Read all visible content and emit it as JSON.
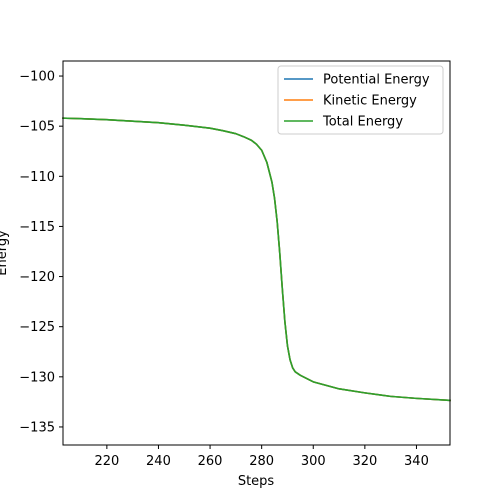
{
  "chart_data": {
    "type": "line",
    "title": "",
    "xlabel": "Steps",
    "ylabel": "Energy",
    "xlim": [
      203,
      353
    ],
    "ylim": [
      -136.8,
      -98.5
    ],
    "xticks": [
      220,
      240,
      260,
      280,
      300,
      320,
      340
    ],
    "yticks": [
      -100,
      -105,
      -110,
      -115,
      -120,
      -125,
      -130,
      -135
    ],
    "xtick_labels": [
      "220",
      "240",
      "260",
      "280",
      "300",
      "320",
      "340"
    ],
    "ytick_labels": [
      "−100",
      "−105",
      "−110",
      "−115",
      "−120",
      "−125",
      "−130",
      "−135"
    ],
    "grid": false,
    "legend_position": "top-right",
    "x": [
      203,
      210,
      220,
      230,
      240,
      250,
      260,
      265,
      270,
      273,
      276,
      278,
      280,
      282,
      284,
      285,
      286,
      287,
      288,
      289,
      290,
      291,
      292,
      293,
      295,
      300,
      310,
      320,
      330,
      340,
      353
    ],
    "series": [
      {
        "name": "Potential Energy",
        "color": "#1f77b4",
        "values": [
          -104.2,
          -104.25,
          -104.35,
          -104.5,
          -104.65,
          -104.9,
          -105.2,
          -105.45,
          -105.75,
          -106.05,
          -106.4,
          -106.8,
          -107.4,
          -108.6,
          -110.6,
          -112.2,
          -114.5,
          -117.6,
          -121.2,
          -124.5,
          -126.9,
          -128.3,
          -129.1,
          -129.5,
          -129.85,
          -130.5,
          -131.2,
          -131.6,
          -131.95,
          -132.15,
          -132.35
        ]
      },
      {
        "name": "Kinetic Energy",
        "color": "#ff7f0e",
        "values": [
          -104.2,
          -104.25,
          -104.35,
          -104.5,
          -104.65,
          -104.9,
          -105.2,
          -105.45,
          -105.75,
          -106.05,
          -106.4,
          -106.8,
          -107.4,
          -108.6,
          -110.6,
          -112.2,
          -114.5,
          -117.6,
          -121.2,
          -124.5,
          -126.9,
          -128.3,
          -129.1,
          -129.5,
          -129.85,
          -130.5,
          -131.2,
          -131.6,
          -131.95,
          -132.15,
          -132.35
        ]
      },
      {
        "name": "Total Energy",
        "color": "#2ca02c",
        "values": [
          -104.2,
          -104.25,
          -104.35,
          -104.5,
          -104.65,
          -104.9,
          -105.2,
          -105.45,
          -105.75,
          -106.05,
          -106.4,
          -106.8,
          -107.4,
          -108.6,
          -110.6,
          -112.2,
          -114.5,
          -117.6,
          -121.2,
          -124.5,
          -126.9,
          -128.3,
          -129.1,
          -129.5,
          -129.85,
          -130.5,
          -131.2,
          -131.6,
          -131.95,
          -132.15,
          -132.35
        ]
      }
    ]
  }
}
